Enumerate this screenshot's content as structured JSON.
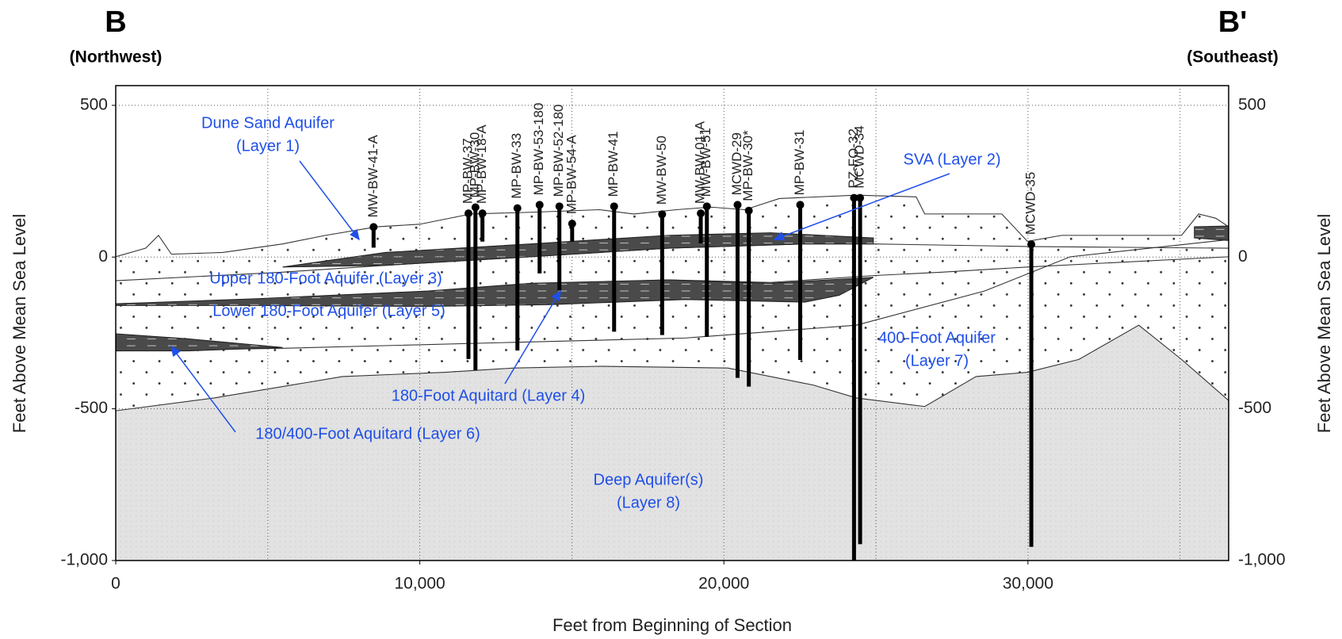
{
  "header": {
    "left_title": "B",
    "left_subtitle": "(Northwest)",
    "right_title": "B'",
    "right_subtitle": "(Southeast)"
  },
  "chart_data": {
    "type": "cross-section",
    "xlabel": "Feet from Beginning of Section",
    "ylabel": "Feet Above Mean Sea Level",
    "xlim": [
      0,
      36600
    ],
    "ylim": [
      -1000,
      565
    ],
    "xticks": [
      0,
      {
        "value": 10000,
        "label": "10,000"
      },
      {
        "value": 20000,
        "label": "20,000"
      },
      {
        "value": 30000,
        "label": "30,000"
      }
    ],
    "yticks": [
      500,
      0,
      -500,
      {
        "value": -1000,
        "label": "-1,000"
      }
    ],
    "xgrid": [
      5000,
      10000,
      15000,
      20000,
      25000,
      30000,
      35000
    ],
    "ygrid": [
      500,
      0,
      -500
    ],
    "grid": true,
    "well_color": "#000000",
    "wells": [
      {
        "name": "MW-BW-41-A",
        "x": 8480,
        "top": 99,
        "bottom": 31
      },
      {
        "name": "MP-BW-37",
        "x": 11600,
        "top": 144,
        "bottom": -336
      },
      {
        "name": "MP-BW-30",
        "x": 11830,
        "top": 164,
        "bottom": -373
      },
      {
        "name": "MP-BW-18-A",
        "x": 12060,
        "top": 144,
        "bottom": 51
      },
      {
        "name": "MP-BW-33",
        "x": 13210,
        "top": 161,
        "bottom": -308
      },
      {
        "name": "MP-BW-53-180",
        "x": 13940,
        "top": 172,
        "bottom": -54
      },
      {
        "name": "MP-BW-52-180",
        "x": 14590,
        "top": 167,
        "bottom": -110
      },
      {
        "name": "MP-BW-54-A",
        "x": 15010,
        "top": 110,
        "bottom": 51
      },
      {
        "name": "MP-BW-41",
        "x": 16390,
        "top": 167,
        "bottom": -246
      },
      {
        "name": "MW-BW-50",
        "x": 17970,
        "top": 141,
        "bottom": -257
      },
      {
        "name": "MW-BW-01-A",
        "x": 19240,
        "top": 144,
        "bottom": 45
      },
      {
        "name": "MW-BW-51",
        "x": 19440,
        "top": 167,
        "bottom": -263
      },
      {
        "name": "MCWD-29",
        "x": 20450,
        "top": 172,
        "bottom": -398
      },
      {
        "name": "MP-BW-30*",
        "x": 20820,
        "top": 153,
        "bottom": -427
      },
      {
        "name": "MP-BW-31",
        "x": 22510,
        "top": 172,
        "bottom": -339
      },
      {
        "name": "PZ-FO-32",
        "x": 24280,
        "top": 195,
        "bottom": -1000
      },
      {
        "name": "MCWD-34",
        "x": 24480,
        "top": 195,
        "bottom": -946
      },
      {
        "name": "MCWD-35",
        "x": 30110,
        "top": 42,
        "bottom": -955
      }
    ],
    "annotations": [
      {
        "text": [
          "Dune Sand Aquifer",
          "(Layer 1)"
        ]
      },
      {
        "text": [
          "SVA (Layer 2)"
        ]
      },
      {
        "text": [
          "Upper 180-Foot Aquifer (Layer 3)"
        ]
      },
      {
        "text": [
          "Lower 180-Foot Aquifer (Layer 5)"
        ]
      },
      {
        "text": [
          "180-Foot Aquitard (Layer 4)"
        ]
      },
      {
        "text": [
          "180/400-Foot Aquitard (Layer 6)"
        ]
      },
      {
        "text": [
          "400-Foot Aquifer",
          "(Layer 7)"
        ]
      },
      {
        "text": [
          "Deep Aquifer(s)",
          "(Layer 8)"
        ]
      }
    ]
  }
}
